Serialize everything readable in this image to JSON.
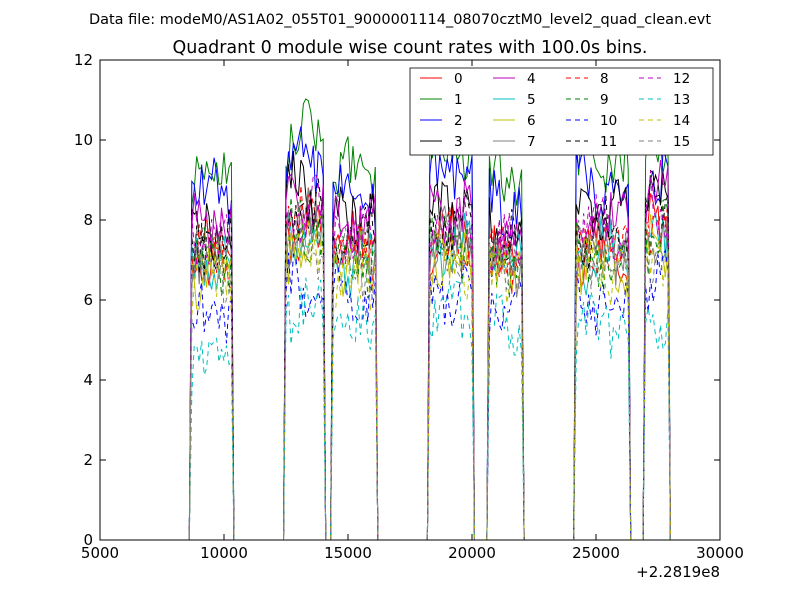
{
  "suptitle": "Data file: modeM0/AS1A02_055T01_9000001114_08070cztM0_level2_quad_clean.evt",
  "chart_data": {
    "type": "line",
    "title": "Quadrant 0 module wise count rates with 100.0s bins.",
    "xlabel": "",
    "ylabel": "",
    "xlim": [
      5000,
      30000
    ],
    "ylim": [
      0,
      12
    ],
    "x_offset_label": "+2.2819e8",
    "x_ticks": [
      5000,
      10000,
      15000,
      20000,
      25000,
      30000
    ],
    "x_tick_labels": [
      "5000",
      "10000",
      "15000",
      "20000",
      "25000",
      "30000"
    ],
    "y_ticks": [
      0,
      2,
      4,
      6,
      8,
      10,
      12
    ],
    "y_tick_labels": [
      "0",
      "2",
      "4",
      "6",
      "8",
      "10",
      "12"
    ],
    "grid": false,
    "legend_position": "top-right",
    "legend_columns": 4,
    "bin_seconds": 100,
    "observation_segments": [
      {
        "start": 8700,
        "end": 10300
      },
      {
        "start": 12500,
        "end": 14000
      },
      {
        "start": 14400,
        "end": 16100
      },
      {
        "start": 18300,
        "end": 20000
      },
      {
        "start": 20700,
        "end": 22000
      },
      {
        "start": 24200,
        "end": 26300
      },
      {
        "start": 27000,
        "end": 27900
      }
    ],
    "series": [
      {
        "name": "0",
        "color": "#ff0000",
        "dash": "solid",
        "segment_means": [
          7.0,
          7.9,
          7.4,
          7.5,
          7.2,
          7.1,
          7.9
        ]
      },
      {
        "name": "1",
        "color": "#008000",
        "dash": "solid",
        "segment_means": [
          9.2,
          10.2,
          9.3,
          9.8,
          9.0,
          9.6,
          9.9
        ]
      },
      {
        "name": "2",
        "color": "#0000ff",
        "dash": "solid",
        "segment_means": [
          8.7,
          9.4,
          8.6,
          9.1,
          8.4,
          8.8,
          9.2
        ]
      },
      {
        "name": "3",
        "color": "#000000",
        "dash": "solid",
        "segment_means": [
          7.6,
          8.7,
          8.1,
          8.4,
          7.8,
          8.2,
          8.8
        ]
      },
      {
        "name": "4",
        "color": "#bf00bf",
        "dash": "solid",
        "segment_means": [
          8.0,
          8.5,
          7.9,
          8.3,
          7.6,
          8.0,
          8.6
        ]
      },
      {
        "name": "5",
        "color": "#00bfbf",
        "dash": "solid",
        "segment_means": [
          6.9,
          7.6,
          7.1,
          7.3,
          6.9,
          7.1,
          7.5
        ]
      },
      {
        "name": "6",
        "color": "#bfbf00",
        "dash": "solid",
        "segment_means": [
          6.7,
          7.3,
          6.8,
          7.0,
          6.7,
          6.9,
          7.3
        ]
      },
      {
        "name": "7",
        "color": "#808080",
        "dash": "solid",
        "segment_means": [
          7.1,
          7.8,
          7.2,
          7.5,
          7.0,
          7.3,
          7.8
        ]
      },
      {
        "name": "8",
        "color": "#ff0000",
        "dash": "dashed",
        "segment_means": [
          7.2,
          8.0,
          7.3,
          7.6,
          7.1,
          7.3,
          7.9
        ]
      },
      {
        "name": "9",
        "color": "#008000",
        "dash": "dashed",
        "segment_means": [
          7.0,
          7.6,
          7.0,
          7.4,
          6.9,
          7.1,
          7.6
        ]
      },
      {
        "name": "10",
        "color": "#0000ff",
        "dash": "dashed",
        "segment_means": [
          5.6,
          6.4,
          5.9,
          6.2,
          5.8,
          6.0,
          6.3
        ]
      },
      {
        "name": "11",
        "color": "#000000",
        "dash": "dashed",
        "segment_means": [
          7.4,
          8.3,
          7.7,
          7.9,
          7.5,
          7.7,
          8.3
        ]
      },
      {
        "name": "12",
        "color": "#bf00bf",
        "dash": "dashed",
        "segment_means": [
          7.6,
          8.2,
          7.6,
          7.9,
          7.4,
          7.7,
          8.3
        ]
      },
      {
        "name": "13",
        "color": "#00bfbf",
        "dash": "dashed",
        "segment_means": [
          4.6,
          5.8,
          5.3,
          5.6,
          5.2,
          5.3,
          5.7
        ]
      },
      {
        "name": "14",
        "color": "#bfbf00",
        "dash": "dashed",
        "segment_means": [
          6.5,
          7.2,
          6.6,
          6.9,
          6.5,
          6.7,
          7.1
        ]
      },
      {
        "name": "15",
        "color": "#808080",
        "dash": "dashed",
        "segment_means": [
          6.8,
          7.5,
          6.9,
          7.2,
          6.8,
          7.0,
          7.4
        ]
      }
    ]
  }
}
